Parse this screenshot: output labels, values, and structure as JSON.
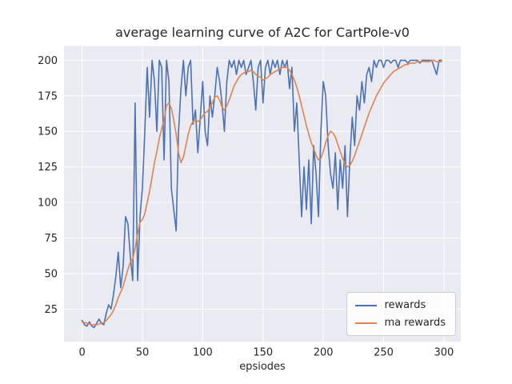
{
  "figure": {
    "title": "average learning curve of A2C for CartPole-v0",
    "xlabel": "epsiodes"
  },
  "chart_data": {
    "type": "line",
    "title": "average learning curve of A2C for CartPole-v0",
    "xlabel": "epsiodes",
    "ylabel": "",
    "xlim": [
      -15,
      314
    ],
    "ylim": [
      2,
      210
    ],
    "xticks": [
      0,
      50,
      100,
      150,
      200,
      250,
      300
    ],
    "yticks": [
      25,
      50,
      75,
      100,
      125,
      150,
      175,
      200
    ],
    "grid": true,
    "plot_bg": "#eaeaf2",
    "grid_color": "#ffffff",
    "legend_position": "lower right",
    "x": [
      0,
      2,
      4,
      6,
      8,
      10,
      12,
      14,
      16,
      18,
      20,
      22,
      24,
      26,
      28,
      30,
      32,
      34,
      36,
      38,
      40,
      42,
      44,
      46,
      48,
      50,
      52,
      54,
      56,
      58,
      60,
      62,
      64,
      66,
      68,
      70,
      72,
      74,
      76,
      78,
      80,
      82,
      84,
      86,
      88,
      90,
      92,
      94,
      96,
      98,
      100,
      102,
      104,
      106,
      108,
      110,
      112,
      114,
      116,
      118,
      120,
      122,
      124,
      126,
      128,
      130,
      132,
      134,
      136,
      138,
      140,
      142,
      144,
      146,
      148,
      150,
      152,
      154,
      156,
      158,
      160,
      162,
      164,
      166,
      168,
      170,
      172,
      174,
      176,
      178,
      180,
      182,
      184,
      186,
      188,
      190,
      192,
      194,
      196,
      198,
      200,
      202,
      204,
      206,
      208,
      210,
      212,
      214,
      216,
      218,
      220,
      222,
      224,
      226,
      228,
      230,
      232,
      234,
      236,
      238,
      240,
      242,
      244,
      246,
      248,
      250,
      252,
      254,
      256,
      258,
      260,
      262,
      264,
      266,
      268,
      270,
      272,
      274,
      276,
      278,
      280,
      282,
      284,
      286,
      288,
      290,
      292,
      294,
      296,
      298
    ],
    "series": [
      {
        "name": "rewards",
        "color": "#4c72b0",
        "values": [
          17,
          14,
          13,
          16,
          13,
          12,
          15,
          18,
          15,
          14,
          22,
          28,
          25,
          35,
          48,
          65,
          40,
          55,
          90,
          85,
          62,
          45,
          170,
          45,
          90,
          110,
          150,
          195,
          160,
          200,
          185,
          150,
          200,
          195,
          130,
          200,
          185,
          110,
          95,
          80,
          150,
          180,
          200,
          175,
          195,
          200,
          155,
          165,
          135,
          160,
          185,
          150,
          140,
          175,
          160,
          175,
          195,
          185,
          170,
          150,
          185,
          200,
          195,
          200,
          190,
          200,
          195,
          200,
          190,
          195,
          200,
          185,
          165,
          195,
          200,
          170,
          195,
          200,
          190,
          200,
          195,
          200,
          190,
          200,
          195,
          200,
          180,
          195,
          150,
          170,
          130,
          90,
          125,
          95,
          130,
          85,
          140,
          120,
          90,
          150,
          185,
          175,
          140,
          120,
          110,
          135,
          95,
          130,
          110,
          140,
          90,
          130,
          160,
          140,
          175,
          165,
          185,
          170,
          190,
          195,
          185,
          200,
          195,
          200,
          200,
          195,
          200,
          200,
          198,
          200,
          200,
          195,
          200,
          200,
          200,
          198,
          200,
          200,
          200,
          200,
          198,
          200,
          200,
          200,
          200,
          200,
          195,
          190,
          200,
          200
        ]
      },
      {
        "name": "ma rewards",
        "color": "#dd8452",
        "values": [
          16,
          15.5,
          15,
          14.5,
          14,
          14,
          14,
          14.5,
          15,
          15.5,
          17,
          19,
          21,
          24,
          28,
          33,
          37,
          41,
          47,
          53,
          58,
          60,
          68,
          78,
          86,
          88,
          92,
          100,
          108,
          118,
          128,
          136,
          145,
          152,
          158,
          168,
          170,
          166,
          158,
          148,
          135,
          128,
          132,
          140,
          148,
          154,
          157,
          158,
          157,
          158,
          161,
          163,
          164,
          167,
          170,
          174,
          175,
          172,
          167,
          165,
          168,
          172,
          177,
          182,
          185,
          188,
          190,
          191,
          192,
          192,
          193,
          192,
          190,
          189,
          188,
          186,
          187,
          188,
          190,
          191,
          192,
          193,
          194,
          195,
          195,
          195,
          193,
          190,
          186,
          181,
          175,
          168,
          161,
          154,
          148,
          142,
          138,
          133,
          130,
          131,
          136,
          142,
          147,
          150,
          149,
          146,
          141,
          136,
          131,
          127,
          125,
          126,
          129,
          133,
          138,
          143,
          148,
          153,
          158,
          163,
          167,
          171,
          175,
          178,
          181,
          184,
          186,
          188,
          190,
          192,
          193,
          194,
          195,
          196,
          197,
          197,
          198,
          198,
          198,
          199,
          199,
          199,
          199,
          199,
          199,
          200,
          200,
          199,
          199,
          199
        ]
      }
    ]
  }
}
